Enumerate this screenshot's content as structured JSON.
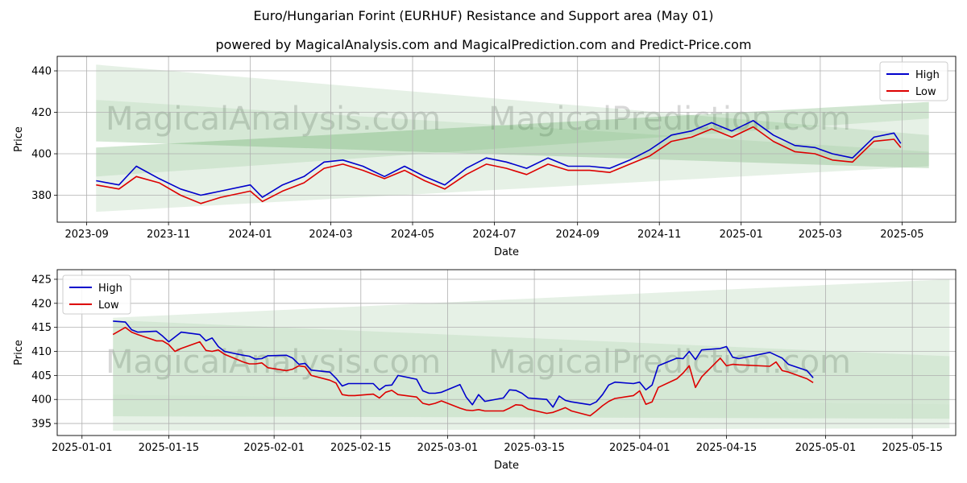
{
  "title": "Euro/Hungarian Forint (EURHUF) Resistance and Support area (May 01)",
  "subtitle": "powered by MagicalAnalysis.com and MagicalPrediction.com and Predict-Price.com",
  "watermarks": [
    "MagicalAnalysis.com",
    "MagicalPrediction.com"
  ],
  "colors": {
    "high": "#0000cc",
    "low": "#dd0000",
    "band": "#2e8b2e",
    "grid": "#b0b0b0"
  },
  "chart_data": [
    {
      "type": "line",
      "xlabel": "Date",
      "ylabel": "Price",
      "legend": "top-right",
      "grid": true,
      "x_ticks": [
        "2023-09",
        "2023-11",
        "2024-01",
        "2024-03",
        "2024-05",
        "2024-07",
        "2024-09",
        "2024-11",
        "2025-01",
        "2025-03",
        "2025-05"
      ],
      "y_ticks": [
        "380",
        "400",
        "420",
        "440"
      ],
      "ylim": [
        367,
        447
      ],
      "xlim": [
        "2023-08-10",
        "2025-06-10"
      ],
      "bands": [
        {
          "x": [
            "2023-09-08",
            "2025-05-21"
          ],
          "upper": [
            443,
            409
          ],
          "lower": [
            426,
            401
          ]
        },
        {
          "x": [
            "2023-09-08",
            "2025-05-21"
          ],
          "upper": [
            426,
            401
          ],
          "lower": [
            406,
            393
          ]
        },
        {
          "x": [
            "2023-09-08",
            "2025-05-21"
          ],
          "upper": [
            403,
            425
          ],
          "lower": [
            389,
            417
          ]
        },
        {
          "x": [
            "2023-09-08",
            "2025-05-21"
          ],
          "upper": [
            389,
            417
          ],
          "lower": [
            372,
            394
          ]
        }
      ],
      "series": [
        {
          "name": "High",
          "x": [
            "2023-09-08",
            "2023-09-25",
            "2023-10-08",
            "2023-10-25",
            "2023-11-10",
            "2023-11-25",
            "2023-12-10",
            "2024-01-01",
            "2024-01-10",
            "2024-01-25",
            "2024-02-10",
            "2024-02-25",
            "2024-03-10",
            "2024-03-25",
            "2024-04-10",
            "2024-04-25",
            "2024-05-10",
            "2024-05-25",
            "2024-06-10",
            "2024-06-25",
            "2024-07-10",
            "2024-07-25",
            "2024-08-10",
            "2024-08-25",
            "2024-09-10",
            "2024-09-25",
            "2024-10-10",
            "2024-10-25",
            "2024-11-10",
            "2024-11-25",
            "2024-12-10",
            "2024-12-25",
            "2025-01-10",
            "2025-01-25",
            "2025-02-10",
            "2025-02-25",
            "2025-03-10",
            "2025-03-25",
            "2025-04-10",
            "2025-04-25",
            "2025-04-30"
          ],
          "values": [
            387,
            385,
            394,
            388,
            383,
            380,
            382,
            385,
            379,
            385,
            389,
            396,
            397,
            394,
            389,
            394,
            389,
            385,
            393,
            398,
            396,
            393,
            398,
            394,
            394,
            393,
            397,
            402,
            409,
            411,
            415,
            411,
            416,
            409,
            404,
            403,
            400,
            398,
            408,
            410,
            405
          ]
        },
        {
          "name": "Low",
          "x": [
            "2023-09-08",
            "2023-09-25",
            "2023-10-08",
            "2023-10-25",
            "2023-11-10",
            "2023-11-25",
            "2023-12-10",
            "2024-01-01",
            "2024-01-10",
            "2024-01-25",
            "2024-02-10",
            "2024-02-25",
            "2024-03-10",
            "2024-03-25",
            "2024-04-10",
            "2024-04-25",
            "2024-05-10",
            "2024-05-25",
            "2024-06-10",
            "2024-06-25",
            "2024-07-10",
            "2024-07-25",
            "2024-08-10",
            "2024-08-25",
            "2024-09-10",
            "2024-09-25",
            "2024-10-10",
            "2024-10-25",
            "2024-11-10",
            "2024-11-25",
            "2024-12-10",
            "2024-12-25",
            "2025-01-10",
            "2025-01-25",
            "2025-02-10",
            "2025-02-25",
            "2025-03-10",
            "2025-03-25",
            "2025-04-10",
            "2025-04-25",
            "2025-04-30"
          ],
          "values": [
            385,
            383,
            389,
            386,
            380,
            376,
            379,
            382,
            377,
            382,
            386,
            393,
            395,
            392,
            388,
            392,
            387,
            383,
            390,
            395,
            393,
            390,
            395,
            392,
            392,
            391,
            395,
            399,
            406,
            408,
            412,
            408,
            413,
            406,
            401,
            400,
            397,
            396,
            406,
            407,
            403
          ]
        }
      ]
    },
    {
      "type": "line",
      "xlabel": "Date",
      "ylabel": "Price",
      "legend": "top-left",
      "grid": true,
      "x_ticks": [
        "2025-01-01",
        "2025-01-15",
        "2025-02-01",
        "2025-02-15",
        "2025-03-01",
        "2025-03-15",
        "2025-04-01",
        "2025-04-15",
        "2025-05-01",
        "2025-05-15"
      ],
      "y_ticks": [
        "395",
        "400",
        "405",
        "410",
        "415",
        "420",
        "425"
      ],
      "ylim": [
        392.5,
        427
      ],
      "xlim": [
        "2024-12-28",
        "2025-05-22"
      ],
      "bands": [
        {
          "x": [
            "2025-01-06",
            "2025-05-21"
          ],
          "upper": [
            417,
            425
          ],
          "lower": [
            416.5,
            409
          ]
        },
        {
          "x": [
            "2025-01-06",
            "2025-05-21"
          ],
          "upper": [
            416.5,
            409
          ],
          "lower": [
            401,
            399
          ]
        },
        {
          "x": [
            "2025-01-06",
            "2025-05-21"
          ],
          "upper": [
            401,
            399
          ],
          "lower": [
            396.5,
            396
          ]
        },
        {
          "x": [
            "2025-01-06",
            "2025-05-21"
          ],
          "upper": [
            396.5,
            396
          ],
          "lower": [
            393.5,
            394
          ]
        }
      ],
      "series": [
        {
          "name": "High",
          "x": [
            "2025-01-06",
            "2025-01-08",
            "2025-01-09",
            "2025-01-10",
            "2025-01-13",
            "2025-01-14",
            "2025-01-15",
            "2025-01-16",
            "2025-01-17",
            "2025-01-20",
            "2025-01-21",
            "2025-01-22",
            "2025-01-23",
            "2025-01-24",
            "2025-01-27",
            "2025-01-28",
            "2025-01-29",
            "2025-01-30",
            "2025-01-31",
            "2025-02-03",
            "2025-02-04",
            "2025-02-05",
            "2025-02-06",
            "2025-02-07",
            "2025-02-10",
            "2025-02-11",
            "2025-02-12",
            "2025-02-13",
            "2025-02-14",
            "2025-02-17",
            "2025-02-18",
            "2025-02-19",
            "2025-02-20",
            "2025-02-21",
            "2025-02-24",
            "2025-02-25",
            "2025-02-26",
            "2025-02-27",
            "2025-02-28",
            "2025-03-03",
            "2025-03-04",
            "2025-03-05",
            "2025-03-06",
            "2025-03-07",
            "2025-03-10",
            "2025-03-11",
            "2025-03-12",
            "2025-03-13",
            "2025-03-14",
            "2025-03-17",
            "2025-03-18",
            "2025-03-19",
            "2025-03-20",
            "2025-03-21",
            "2025-03-24",
            "2025-03-25",
            "2025-03-26",
            "2025-03-27",
            "2025-03-28",
            "2025-03-31",
            "2025-04-01",
            "2025-04-02",
            "2025-04-03",
            "2025-04-04",
            "2025-04-07",
            "2025-04-08",
            "2025-04-09",
            "2025-04-10",
            "2025-04-11",
            "2025-04-14",
            "2025-04-15",
            "2025-04-16",
            "2025-04-17",
            "2025-04-22",
            "2025-04-23",
            "2025-04-24",
            "2025-04-25",
            "2025-04-28",
            "2025-04-29"
          ],
          "values": [
            416.3,
            416.1,
            414.5,
            414.0,
            414.2,
            413.2,
            412.0,
            413.0,
            414.0,
            413.5,
            412.2,
            412.8,
            411.0,
            410.0,
            409.2,
            409.0,
            408.4,
            408.5,
            409.1,
            409.2,
            408.6,
            407.3,
            407.5,
            406.1,
            405.7,
            404.4,
            402.8,
            403.3,
            403.3,
            403.3,
            402.0,
            402.9,
            403.0,
            405.0,
            404.2,
            401.8,
            401.3,
            401.3,
            401.5,
            403.1,
            400.5,
            398.9,
            401.0,
            399.6,
            400.3,
            402.0,
            401.9,
            401.3,
            400.3,
            400.0,
            398.4,
            400.7,
            399.8,
            399.5,
            398.9,
            399.5,
            401.0,
            403.0,
            403.6,
            403.3,
            403.6,
            402.0,
            403.0,
            407.0,
            408.6,
            408.5,
            410.0,
            408.3,
            410.3,
            410.6,
            411.0,
            408.8,
            408.5,
            409.8,
            409.2,
            408.6,
            407.3,
            406.0,
            404.5
          ]
        },
        {
          "name": "Low",
          "x": [
            "2025-01-06",
            "2025-01-08",
            "2025-01-09",
            "2025-01-10",
            "2025-01-13",
            "2025-01-14",
            "2025-01-15",
            "2025-01-16",
            "2025-01-17",
            "2025-01-20",
            "2025-01-21",
            "2025-01-22",
            "2025-01-23",
            "2025-01-24",
            "2025-01-27",
            "2025-01-28",
            "2025-01-29",
            "2025-01-30",
            "2025-01-31",
            "2025-02-03",
            "2025-02-04",
            "2025-02-05",
            "2025-02-06",
            "2025-02-07",
            "2025-02-10",
            "2025-02-11",
            "2025-02-12",
            "2025-02-13",
            "2025-02-14",
            "2025-02-17",
            "2025-02-18",
            "2025-02-19",
            "2025-02-20",
            "2025-02-21",
            "2025-02-24",
            "2025-02-25",
            "2025-02-26",
            "2025-02-27",
            "2025-02-28",
            "2025-03-03",
            "2025-03-04",
            "2025-03-05",
            "2025-03-06",
            "2025-03-07",
            "2025-03-10",
            "2025-03-11",
            "2025-03-12",
            "2025-03-13",
            "2025-03-14",
            "2025-03-17",
            "2025-03-18",
            "2025-03-19",
            "2025-03-20",
            "2025-03-21",
            "2025-03-24",
            "2025-03-25",
            "2025-03-26",
            "2025-03-27",
            "2025-03-28",
            "2025-03-31",
            "2025-04-01",
            "2025-04-02",
            "2025-04-03",
            "2025-04-04",
            "2025-04-07",
            "2025-04-08",
            "2025-04-09",
            "2025-04-10",
            "2025-04-11",
            "2025-04-14",
            "2025-04-15",
            "2025-04-16",
            "2025-04-17",
            "2025-04-22",
            "2025-04-23",
            "2025-04-24",
            "2025-04-25",
            "2025-04-28",
            "2025-04-29"
          ],
          "values": [
            413.5,
            415.0,
            414.0,
            413.5,
            412.2,
            412.2,
            411.4,
            410.0,
            410.6,
            412.0,
            410.2,
            410.0,
            410.3,
            409.4,
            407.8,
            407.4,
            407.4,
            407.6,
            406.6,
            406.0,
            406.3,
            407.0,
            406.8,
            405.0,
            404.0,
            403.4,
            401.0,
            400.8,
            400.8,
            401.1,
            400.3,
            401.5,
            401.9,
            401.0,
            400.5,
            399.2,
            398.9,
            399.2,
            399.7,
            398.2,
            397.8,
            397.7,
            397.9,
            397.6,
            397.6,
            398.2,
            398.9,
            398.8,
            398.0,
            397.1,
            397.3,
            397.8,
            398.3,
            397.6,
            396.6,
            397.6,
            398.7,
            399.6,
            400.2,
            400.8,
            401.8,
            399.0,
            399.5,
            402.5,
            404.3,
            405.5,
            407.0,
            402.5,
            404.7,
            408.6,
            407.0,
            407.3,
            407.2,
            406.9,
            407.8,
            406.0,
            405.7,
            404.3,
            403.5
          ]
        }
      ]
    }
  ]
}
